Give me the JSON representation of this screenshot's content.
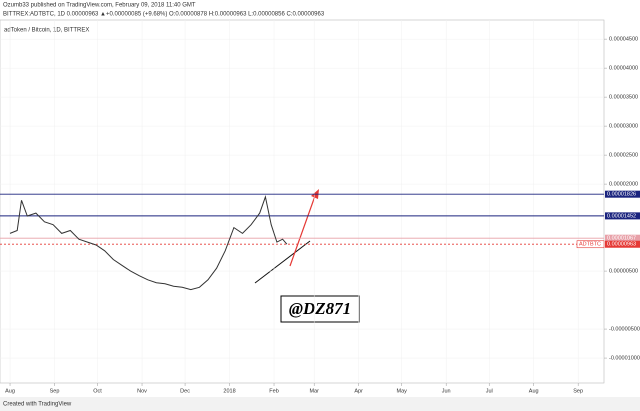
{
  "chart_data": {
    "type": "line",
    "header": "Ozumb33 published on TradingView.com, February 09, 2018 11:40 GMT",
    "symbol_line": "BITTREX:ADTBTC, 1D  0.00000963 ▲+0.00000085 (+9.68%)  O:0.00000878 H:0.00000963 L:0.00000856 C:0.00000963",
    "title": "adToken / Bitcoin, 1D, BITTREX",
    "annotation": "@DZ871",
    "footer": "Created with TradingView",
    "symbol": "ADTBTC",
    "xlim": [
      -7,
      414
    ],
    "ylim": [
      -1.43e-05,
      4.83e-05
    ],
    "xticks": [
      {
        "value": 0,
        "label": "Aug"
      },
      {
        "value": 31,
        "label": "Sep"
      },
      {
        "value": 61,
        "label": "Oct"
      },
      {
        "value": 92,
        "label": "Nov"
      },
      {
        "value": 122,
        "label": "Dec"
      },
      {
        "value": 153,
        "label": "2018"
      },
      {
        "value": 184,
        "label": "Feb"
      },
      {
        "value": 212,
        "label": "Mar"
      },
      {
        "value": 243,
        "label": "Apr"
      },
      {
        "value": 273,
        "label": "May"
      },
      {
        "value": 304,
        "label": "Jun"
      },
      {
        "value": 334,
        "label": "Jul"
      },
      {
        "value": 365,
        "label": "Aug"
      },
      {
        "value": 396,
        "label": "Sep"
      }
    ],
    "yticks": [
      {
        "value": 4.5e-05,
        "label": "0.00004500"
      },
      {
        "value": 4e-05,
        "label": "0.00004000"
      },
      {
        "value": 3.5e-05,
        "label": "0.00003500"
      },
      {
        "value": 3e-05,
        "label": "0.00003000"
      },
      {
        "value": 2.5e-05,
        "label": "0.00002500"
      },
      {
        "value": 2e-05,
        "label": "0.00002000"
      },
      {
        "value": 5e-06,
        "label": "0.00000500"
      },
      {
        "value": -5e-06,
        "label": "-0.00000500"
      },
      {
        "value": -1e-05,
        "label": "-0.00001000"
      }
    ],
    "levels": [
      {
        "value": 1.826e-05,
        "label": "0.00001826",
        "color": "#1a237e"
      },
      {
        "value": 1.452e-05,
        "label": "0.00001452",
        "color": "#1a237e"
      },
      {
        "value": 1.067e-05,
        "label": "0.00001067",
        "color": "#e8a0a8"
      },
      {
        "value": 9.63e-06,
        "label": "0.00000963",
        "color": "#e53935"
      }
    ],
    "series": [
      {
        "name": "ADTBTC",
        "color": "#333333",
        "x": [
          0,
          5,
          8,
          12,
          18,
          24,
          30,
          36,
          42,
          48,
          54,
          60,
          66,
          72,
          78,
          84,
          90,
          96,
          102,
          108,
          114,
          120,
          126,
          132,
          138,
          144,
          150,
          156,
          162,
          168,
          174,
          178,
          182,
          186,
          190,
          193
        ],
        "values": [
          1.15e-05,
          1.2e-05,
          1.72e-05,
          1.45e-05,
          1.5e-05,
          1.35e-05,
          1.3e-05,
          1.15e-05,
          1.2e-05,
          1.05e-05,
          1e-05,
          9.5e-06,
          8.5e-06,
          7e-06,
          6e-06,
          5e-06,
          4.2e-06,
          3.5e-06,
          3e-06,
          2.8e-06,
          2.4e-06,
          2.2e-06,
          1.8e-06,
          2.2e-06,
          3.5e-06,
          5.5e-06,
          8.5e-06,
          1.25e-05,
          1.15e-05,
          1.3e-05,
          1.5e-05,
          1.78e-05,
          1.3e-05,
          1e-05,
          1.05e-05,
          9.63e-06
        ]
      }
    ],
    "grid": true
  }
}
